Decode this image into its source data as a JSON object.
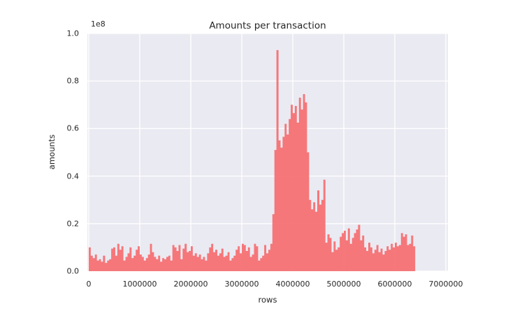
{
  "figure": {
    "title": "Amounts per transaction",
    "offset_text": "1e8",
    "xlabel": "rows",
    "ylabel": "amounts"
  },
  "chart_data": {
    "type": "area",
    "title": "Amounts per transaction",
    "xlabel": "rows",
    "ylabel": "amounts",
    "grid": true,
    "legend": "none",
    "xlim": [
      0,
      7000000
    ],
    "ylim": [
      0,
      100000000
    ],
    "y_offset_label": "1e8",
    "xtick_values": [
      0,
      1000000,
      2000000,
      3000000,
      4000000,
      5000000,
      6000000,
      7000000
    ],
    "xtick_labels": [
      "0",
      "1000000",
      "2000000",
      "3000000",
      "4000000",
      "5000000",
      "6000000",
      "7000000"
    ],
    "ytick_values": [
      0.0,
      0.2,
      0.4,
      0.6,
      0.8,
      1.0
    ],
    "ytick_labels": [
      "0.0",
      "0.2",
      "0.4",
      "0.6",
      "0.8",
      "1.0"
    ],
    "values_scale": 100000000,
    "x_start": 0,
    "x_step": 40000,
    "values": [
      0.1,
      0.065,
      0.055,
      0.07,
      0.045,
      0.05,
      0.04,
      0.065,
      0.035,
      0.045,
      0.05,
      0.095,
      0.1,
      0.065,
      0.115,
      0.09,
      0.105,
      0.045,
      0.06,
      0.075,
      0.1,
      0.055,
      0.065,
      0.09,
      0.105,
      0.07,
      0.06,
      0.045,
      0.055,
      0.07,
      0.115,
      0.08,
      0.06,
      0.05,
      0.065,
      0.04,
      0.055,
      0.05,
      0.06,
      0.065,
      0.045,
      0.11,
      0.1,
      0.085,
      0.11,
      0.05,
      0.095,
      0.115,
      0.08,
      0.085,
      0.105,
      0.065,
      0.075,
      0.06,
      0.07,
      0.05,
      0.06,
      0.045,
      0.075,
      0.1,
      0.115,
      0.08,
      0.09,
      0.065,
      0.075,
      0.095,
      0.06,
      0.065,
      0.08,
      0.045,
      0.055,
      0.065,
      0.09,
      0.105,
      0.075,
      0.115,
      0.11,
      0.085,
      0.1,
      0.06,
      0.07,
      0.115,
      0.105,
      0.045,
      0.055,
      0.065,
      0.11,
      0.075,
      0.09,
      0.115,
      0.24,
      0.51,
      0.93,
      0.55,
      0.52,
      0.565,
      0.62,
      0.575,
      0.64,
      0.7,
      0.665,
      0.695,
      0.625,
      0.73,
      0.68,
      0.745,
      0.71,
      0.5,
      0.3,
      0.26,
      0.29,
      0.25,
      0.34,
      0.28,
      0.3,
      0.385,
      0.12,
      0.155,
      0.14,
      0.08,
      0.125,
      0.09,
      0.1,
      0.145,
      0.16,
      0.17,
      0.13,
      0.18,
      0.115,
      0.14,
      0.16,
      0.175,
      0.195,
      0.13,
      0.15,
      0.1,
      0.085,
      0.12,
      0.1,
      0.075,
      0.09,
      0.11,
      0.08,
      0.095,
      0.07,
      0.085,
      0.105,
      0.09,
      0.115,
      0.1,
      0.12,
      0.105,
      0.11,
      0.16,
      0.145,
      0.155,
      0.11,
      0.115,
      0.15,
      0.105
    ],
    "colors": {
      "series_fill": "#f56c70",
      "series_fill_opacity": 0.92,
      "plot_background": "#eaeaf2",
      "gridline": "#ffffff",
      "text": "#262626",
      "figure_background": "#ffffff"
    }
  }
}
